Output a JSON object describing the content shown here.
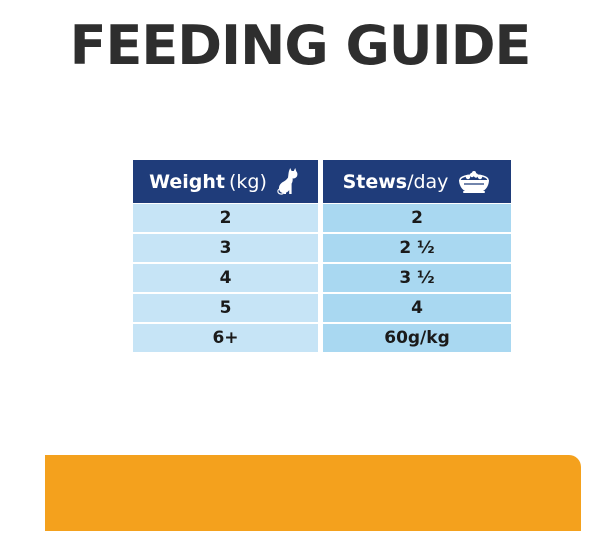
{
  "title": "FEEDING GUIDE",
  "table": {
    "header": {
      "weight_bold": "Weight",
      "weight_unit": "(kg)",
      "weight_icon": "cat-icon",
      "stews_bold": "Stews",
      "stews_unit": "/day",
      "stews_icon": "food-bowl-icon"
    },
    "rows": [
      {
        "weight": "2",
        "stews": "2"
      },
      {
        "weight": "3",
        "stews": "2 ½"
      },
      {
        "weight": "4",
        "stews": "3 ½"
      },
      {
        "weight": "5",
        "stews": "4"
      },
      {
        "weight": "6+",
        "stews": "60g/kg"
      }
    ]
  },
  "colors": {
    "header_bg": "#1f3c7a",
    "weight_col_bg": "#c6e4f6",
    "stews_col_bg": "#a9d8f1",
    "accent_bar": "#f4a11d",
    "title_text": "#2e2e2e"
  }
}
